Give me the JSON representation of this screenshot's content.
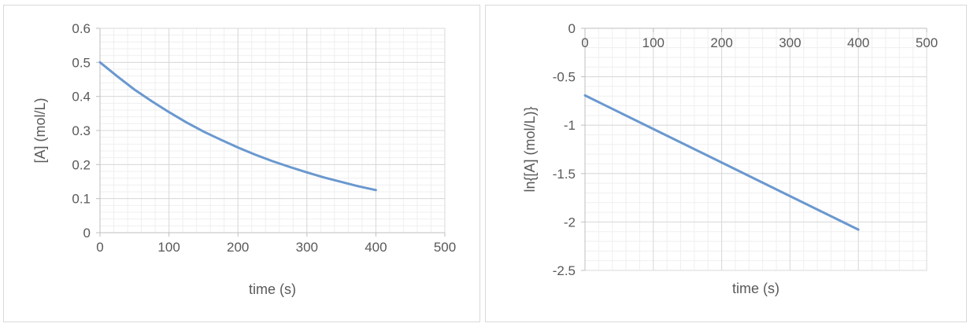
{
  "chart_data": [
    {
      "type": "line",
      "xlabel": "time (s)",
      "ylabel": "[A] (mol/L)",
      "xlim": [
        0,
        500
      ],
      "ylim": [
        0,
        0.6
      ],
      "x_ticks": [
        0,
        100,
        200,
        300,
        400,
        500
      ],
      "y_ticks": [
        0,
        0.1,
        0.2,
        0.3,
        0.4,
        0.5,
        0.6
      ],
      "grid": "major and minor",
      "series": [
        {
          "color": "#6a98cf",
          "x": [
            0,
            25,
            50,
            75,
            100,
            125,
            150,
            175,
            200,
            225,
            250,
            275,
            300,
            325,
            350,
            375,
            400
          ],
          "y": [
            0.5,
            0.459,
            0.42,
            0.386,
            0.354,
            0.324,
            0.297,
            0.273,
            0.25,
            0.229,
            0.21,
            0.193,
            0.177,
            0.162,
            0.149,
            0.136,
            0.125
          ]
        }
      ]
    },
    {
      "type": "line",
      "xlabel": "time (s)",
      "ylabel": "ln{[A] (mol/L)}",
      "xlim": [
        0,
        500
      ],
      "ylim": [
        -2.5,
        0
      ],
      "x_ticks": [
        0,
        100,
        200,
        300,
        400,
        500
      ],
      "y_ticks": [
        0,
        -0.5,
        -1,
        -1.5,
        -2,
        -2.5
      ],
      "x_axis_position": "top",
      "grid": "major and minor",
      "series": [
        {
          "color": "#6a98cf",
          "x": [
            0,
            100,
            200,
            300,
            400
          ],
          "y": [
            -0.693,
            -1.04,
            -1.386,
            -1.733,
            -2.079
          ]
        }
      ]
    }
  ]
}
